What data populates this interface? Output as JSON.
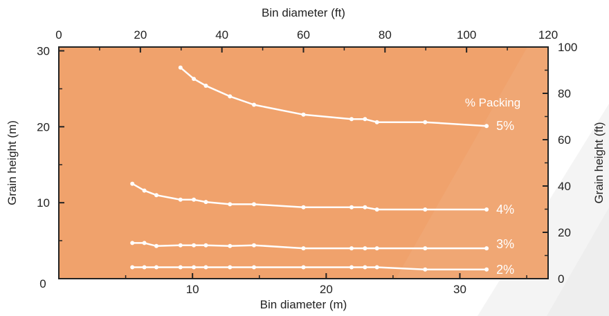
{
  "chart_data": {
    "type": "line",
    "legend_title": "% Packing",
    "x_bottom": {
      "label": "Bin diameter (m)",
      "range": [
        0,
        36.6
      ],
      "ticks": [
        0,
        10,
        20,
        30
      ]
    },
    "x_top": {
      "label": "Bin diameter (ft)",
      "range": [
        0,
        120
      ],
      "ticks": [
        0,
        20,
        40,
        60,
        80,
        100,
        120
      ]
    },
    "y_left": {
      "label": "Grain height (m)",
      "range": [
        0,
        30.5
      ],
      "ticks": [
        10,
        20,
        30
      ]
    },
    "y_right": {
      "label": "Grain height (ft)",
      "range": [
        0,
        100
      ],
      "ticks": [
        0,
        20,
        40,
        60,
        80,
        100
      ]
    },
    "colors": {
      "plot_background": "#f0a26c",
      "lines": "#ffffff",
      "axis": "#222222"
    },
    "series": [
      {
        "name": "5%",
        "x": [
          9.1,
          10.1,
          11.0,
          12.8,
          14.6,
          18.3,
          21.9,
          22.9,
          23.8,
          27.4,
          32.0
        ],
        "y": [
          27.8,
          26.3,
          25.4,
          24.0,
          22.9,
          21.6,
          21.0,
          21.0,
          20.6,
          20.6,
          20.1
        ]
      },
      {
        "name": "4%",
        "x": [
          5.5,
          6.4,
          7.3,
          9.1,
          10.1,
          11.0,
          12.8,
          14.6,
          18.3,
          21.9,
          22.9,
          23.8,
          27.4,
          32.0
        ],
        "y": [
          12.5,
          11.6,
          11.0,
          10.4,
          10.4,
          10.1,
          9.8,
          9.8,
          9.4,
          9.4,
          9.4,
          9.1,
          9.1,
          9.1
        ]
      },
      {
        "name": "3%",
        "x": [
          5.5,
          6.4,
          7.3,
          9.1,
          10.1,
          11.0,
          12.8,
          14.6,
          18.3,
          21.9,
          22.9,
          23.8,
          27.4,
          32.0
        ],
        "y": [
          4.7,
          4.7,
          4.3,
          4.4,
          4.4,
          4.4,
          4.3,
          4.4,
          4.0,
          4.0,
          4.0,
          4.0,
          4.0,
          4.0
        ]
      },
      {
        "name": "2%",
        "x": [
          5.5,
          6.4,
          7.3,
          9.1,
          10.1,
          11.0,
          12.8,
          14.6,
          18.3,
          21.9,
          22.9,
          23.8,
          27.4,
          32.0
        ],
        "y": [
          1.5,
          1.5,
          1.5,
          1.5,
          1.5,
          1.5,
          1.5,
          1.5,
          1.5,
          1.5,
          1.5,
          1.5,
          1.2,
          1.2
        ]
      }
    ]
  }
}
